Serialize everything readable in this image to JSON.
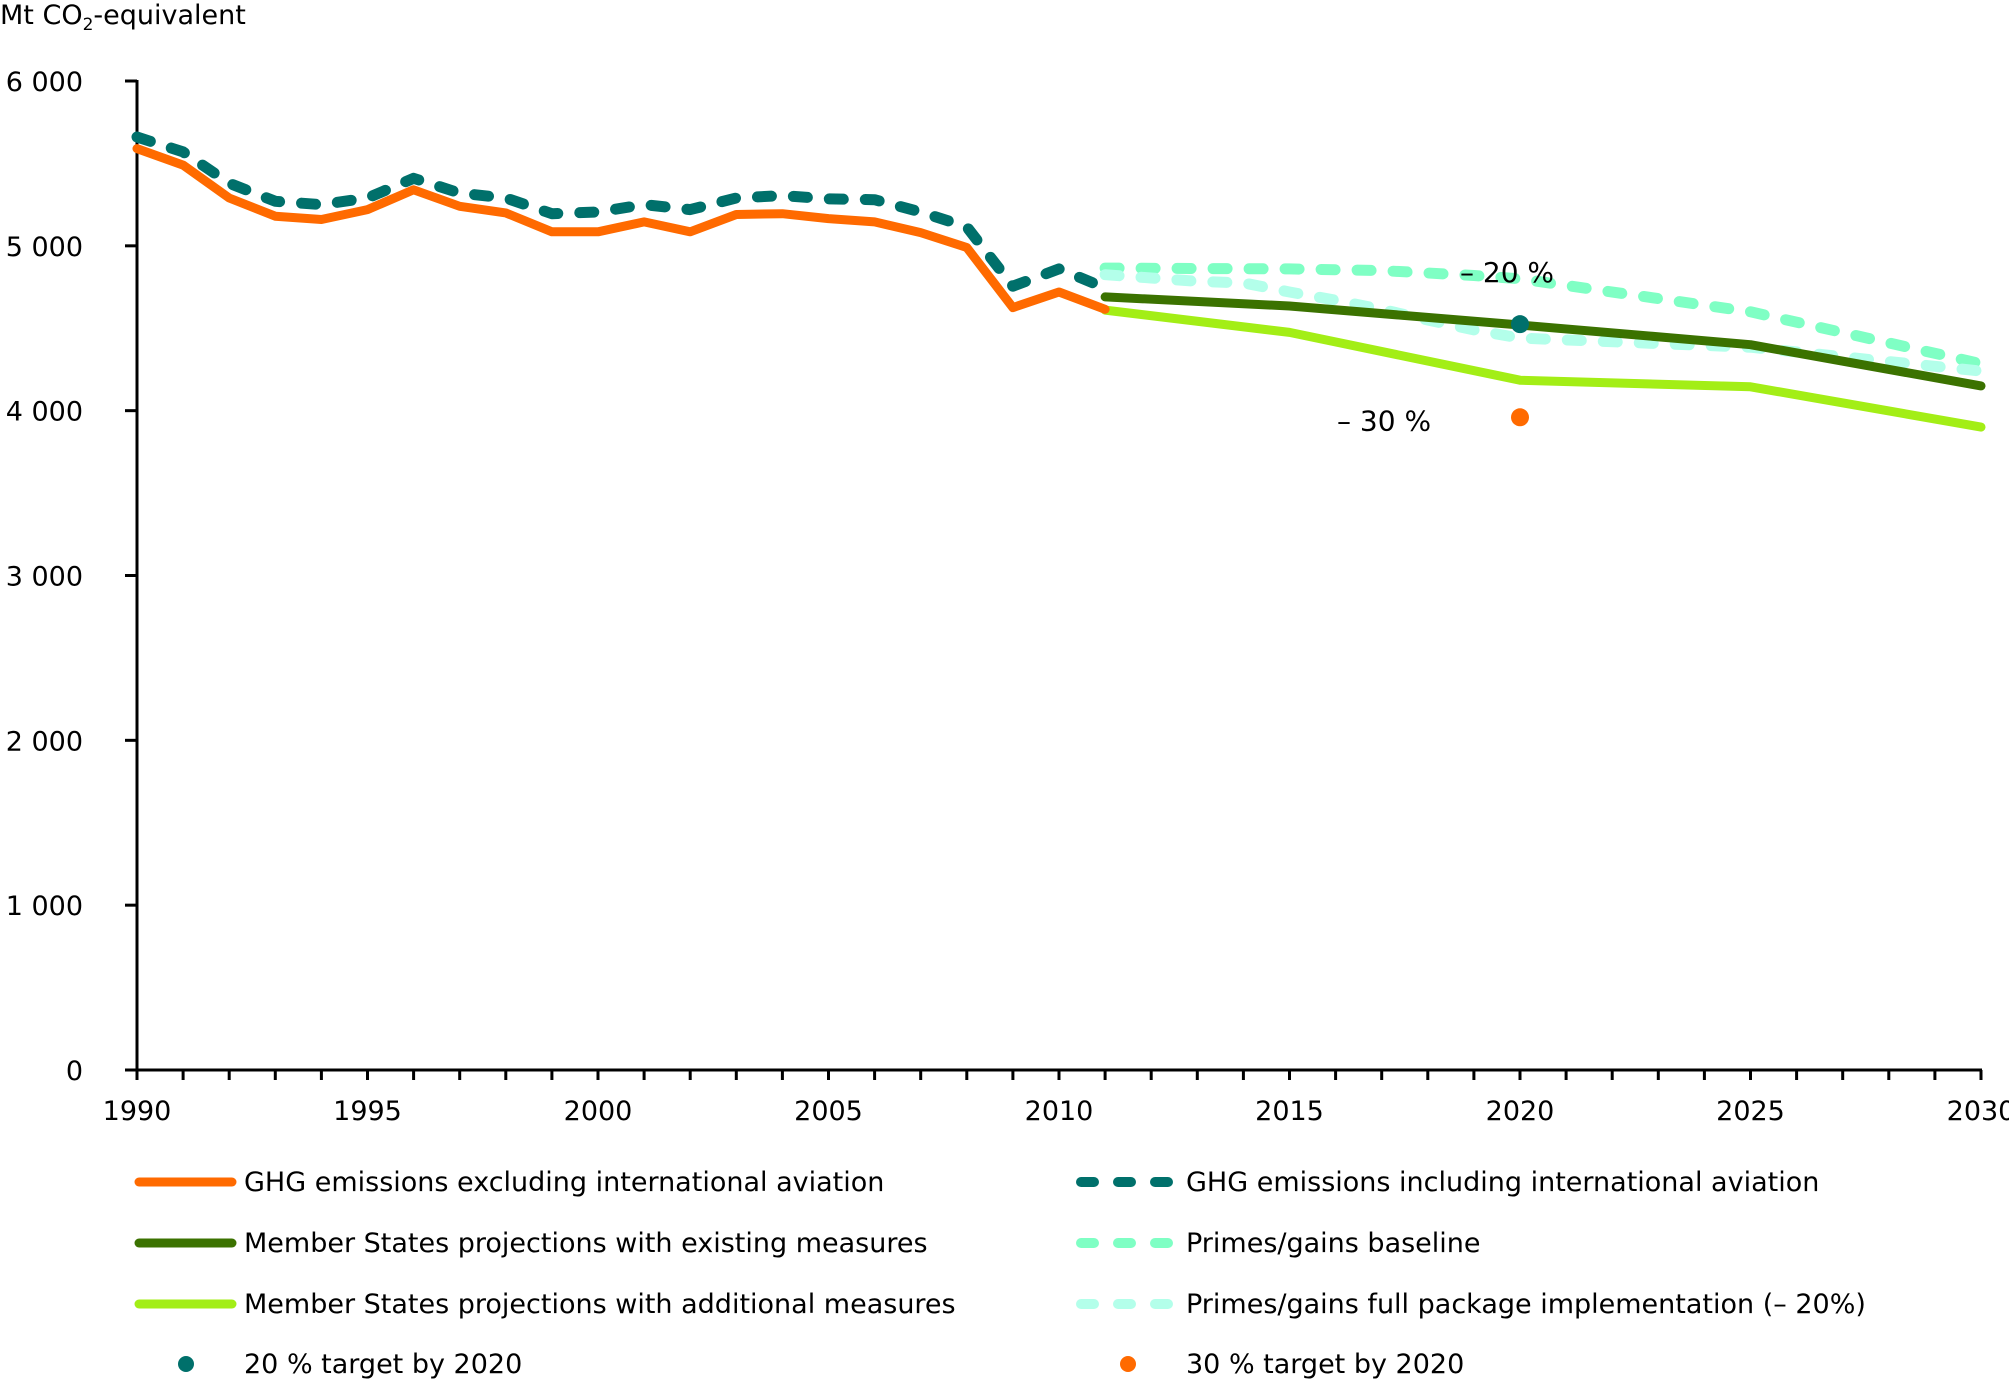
{
  "chart_data": {
    "type": "line",
    "title": "",
    "ylabel": "Mt CO2-equivalent",
    "ylabel_main": "Mt CO",
    "ylabel_sub": "2",
    "ylabel_rest": "-equivalent",
    "xlabel": "",
    "xlim": [
      1990,
      2030
    ],
    "ylim": [
      0,
      6000
    ],
    "grid": false,
    "legend_position": "bottom",
    "y_ticks": [
      {
        "value": 0,
        "label": "0"
      },
      {
        "value": 1000,
        "label": "1 000"
      },
      {
        "value": 2000,
        "label": "2 000"
      },
      {
        "value": 3000,
        "label": "3 000"
      },
      {
        "value": 4000,
        "label": "4 000"
      },
      {
        "value": 5000,
        "label": "5 000"
      },
      {
        "value": 6000,
        "label": "6 000"
      }
    ],
    "x_ticks": [
      {
        "value": 1990,
        "label": "1990"
      },
      {
        "value": 1995,
        "label": "1995"
      },
      {
        "value": 2000,
        "label": "2000"
      },
      {
        "value": 2005,
        "label": "2005"
      },
      {
        "value": 2010,
        "label": "2010"
      },
      {
        "value": 2015,
        "label": "2015"
      },
      {
        "value": 2020,
        "label": "2020"
      },
      {
        "value": 2025,
        "label": "2025"
      },
      {
        "value": 2030,
        "label": "2030"
      }
    ],
    "series": [
      {
        "name": "GHG emissions excluding international aviation",
        "color": "#FF6A00",
        "style": "solid",
        "x": [
          1990,
          1991,
          1992,
          1993,
          1994,
          1995,
          1996,
          1997,
          1998,
          1999,
          2000,
          2001,
          2002,
          2003,
          2004,
          2005,
          2006,
          2007,
          2008,
          2009,
          2010,
          2011
        ],
        "y": [
          5590,
          5490,
          5290,
          5180,
          5160,
          5220,
          5340,
          5240,
          5200,
          5085,
          5085,
          5145,
          5085,
          5190,
          5195,
          5165,
          5145,
          5080,
          4990,
          4625,
          4720,
          4615
        ]
      },
      {
        "name": "GHG emissions including international aviation",
        "color": "#00706B",
        "style": "dashed",
        "x": [
          1990,
          1991,
          1992,
          1993,
          1994,
          1995,
          1996,
          1997,
          1998,
          1999,
          2000,
          2001,
          2002,
          2003,
          2004,
          2005,
          2006,
          2007,
          2008,
          2009,
          2010,
          2011
        ],
        "y": [
          5660,
          5570,
          5380,
          5270,
          5250,
          5290,
          5410,
          5320,
          5290,
          5195,
          5205,
          5250,
          5220,
          5290,
          5305,
          5285,
          5280,
          5205,
          5115,
          4755,
          4860,
          4745
        ]
      },
      {
        "name": "Member States projections with existing measures",
        "color": "#3B7200",
        "style": "solid",
        "x": [
          2011,
          2015,
          2020,
          2025,
          2030
        ],
        "y": [
          4690,
          4635,
          4520,
          4400,
          4150
        ]
      },
      {
        "name": "Primes/gains baseline",
        "color": "#7FFFC4",
        "style": "dashed",
        "x": [
          2011,
          2015,
          2017,
          2018,
          2019,
          2020,
          2025,
          2030
        ],
        "y": [
          4865,
          4860,
          4850,
          4835,
          4820,
          4800,
          4600,
          4285
        ]
      },
      {
        "name": "Member States projections with additional measures",
        "color": "#A3EE16",
        "style": "solid",
        "x": [
          2011,
          2015,
          2020,
          2025,
          2030
        ],
        "y": [
          4610,
          4475,
          4185,
          4145,
          3900
        ]
      },
      {
        "name": "Primes/gains full package implementation (– 20%)",
        "color": "#B3FFEA",
        "style": "dashed",
        "x": [
          2011,
          2012,
          2013,
          2014,
          2015,
          2016,
          2017,
          2018,
          2019,
          2020,
          2025,
          2030
        ],
        "y": [
          4825,
          4805,
          4785,
          4775,
          4720,
          4670,
          4615,
          4550,
          4490,
          4440,
          4385,
          4240
        ]
      }
    ],
    "points": [
      {
        "name": "20 % target by 2020",
        "color": "#00706B",
        "x": 2020,
        "y": 4525
      },
      {
        "name": "30 % target by 2020",
        "color": "#FF6A00",
        "x": 2020,
        "y": 3960
      }
    ],
    "annotations": [
      {
        "text": "– 20 %",
        "x": 2020,
        "y": 4750
      },
      {
        "text": "– 30 %",
        "x": 2018.2,
        "y": 4000
      }
    ]
  },
  "legend": {
    "items": [
      {
        "label": "GHG emissions excluding international aviation",
        "kind": "solid",
        "color": "#FF6A00"
      },
      {
        "label": "GHG emissions including international aviation",
        "kind": "dashed",
        "color": "#00706B"
      },
      {
        "label": "Member States projections with existing measures",
        "kind": "solid",
        "color": "#3B7200"
      },
      {
        "label": "Primes/gains baseline",
        "kind": "dashed",
        "color": "#7FFFC4"
      },
      {
        "label": "Member States projections with additional measures",
        "kind": "solid",
        "color": "#A3EE16"
      },
      {
        "label": "Primes/gains full package implementation (– 20%)",
        "kind": "dashed",
        "color": "#B3FFEA"
      },
      {
        "label": "20 % target by 2020",
        "kind": "dot",
        "color": "#00706B"
      },
      {
        "label": "30 % target by 2020",
        "kind": "dot",
        "color": "#FF6A00"
      }
    ]
  }
}
